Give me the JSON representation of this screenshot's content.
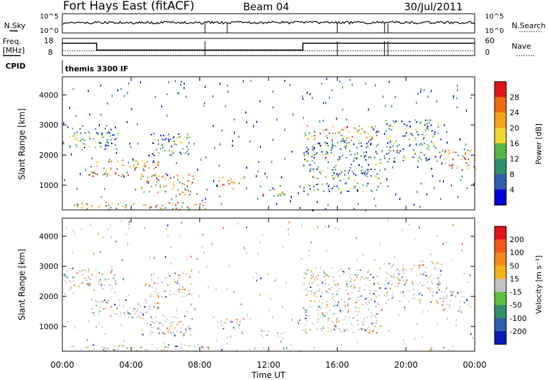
{
  "header": {
    "title": "Fort Hays East (fitACF)",
    "beam": "Beam 04",
    "date": "30/Jul/2011"
  },
  "strips": {
    "nsky_label": "N.Sky",
    "nsearch_label": "N.Search",
    "noise_ticks": [
      "10^5",
      "10^0"
    ],
    "freq_label": "Freq.",
    "freq_unit": "[MHz]",
    "freq_ticks": [
      "18",
      "8"
    ],
    "nave_label": "Nave",
    "nave_ticks": [
      "60",
      "0"
    ],
    "cpid_label": "CPID",
    "cpid_value": "themis 3300 IF"
  },
  "chart_data": [
    {
      "type": "heatmap",
      "name": "power-panel",
      "ylabel": "Slant Range [km]",
      "ylim": [
        180,
        4600
      ],
      "yticks": [
        1000,
        2000,
        3000,
        4000
      ],
      "xlim": [
        0,
        24
      ],
      "xticks": [
        "00:00",
        "04:00",
        "08:00",
        "12:00",
        "16:00",
        "20:00",
        "00:00"
      ],
      "colorbar": {
        "label": "Power [dB]",
        "ticks": [
          "28",
          "24",
          "20",
          "16",
          "12",
          "8",
          "4"
        ],
        "colors": [
          "#0000d8",
          "#2f5fb0",
          "#2f8f6a",
          "#58b548",
          "#f1d531",
          "#f3a21c",
          "#f06a14",
          "#e01515"
        ]
      },
      "features": [
        {
          "start": 0.0,
          "end": 3.2,
          "r0": 2200,
          "r1": 3000
        },
        {
          "start": 1.5,
          "end": 5.6,
          "r0": 1300,
          "r1": 1900
        },
        {
          "start": 4.5,
          "end": 7.6,
          "r0": 700,
          "r1": 1400
        },
        {
          "start": 5.0,
          "end": 7.5,
          "r0": 2000,
          "r1": 2800
        },
        {
          "start": 0.5,
          "end": 8.5,
          "r0": 200,
          "r1": 450
        },
        {
          "start": 9.0,
          "end": 10.5,
          "r0": 900,
          "r1": 1300
        },
        {
          "start": 11.5,
          "end": 13.0,
          "r0": 600,
          "r1": 900
        },
        {
          "start": 14.0,
          "end": 18.5,
          "r0": 800,
          "r1": 2500
        },
        {
          "start": 14.0,
          "end": 18.5,
          "r0": 2500,
          "r1": 3000
        },
        {
          "start": 18.7,
          "end": 22.0,
          "r0": 1800,
          "r1": 3200
        },
        {
          "start": 22.0,
          "end": 24.0,
          "r0": 1500,
          "r1": 2200
        }
      ]
    },
    {
      "type": "heatmap",
      "name": "velocity-panel",
      "ylabel": "Slant Range [km]",
      "ylim": [
        180,
        4600
      ],
      "yticks": [
        1000,
        2000,
        3000,
        4000
      ],
      "xlim": [
        0,
        24
      ],
      "xticks": [
        "00:00",
        "04:00",
        "08:00",
        "12:00",
        "16:00",
        "20:00",
        "00:00"
      ],
      "xlabel": "Time UT",
      "colorbar": {
        "label": "Velocity [m s⁻¹]",
        "ticks": [
          "200",
          "100",
          "50",
          "15",
          "-15",
          "-50",
          "-100",
          "-200"
        ],
        "colors": [
          "#0a1ab8",
          "#2f5fb0",
          "#2f8f6a",
          "#5cc140",
          "#c4c4c4",
          "#f3b21c",
          "#f3891c",
          "#ef5a16",
          "#e01515"
        ]
      }
    }
  ]
}
